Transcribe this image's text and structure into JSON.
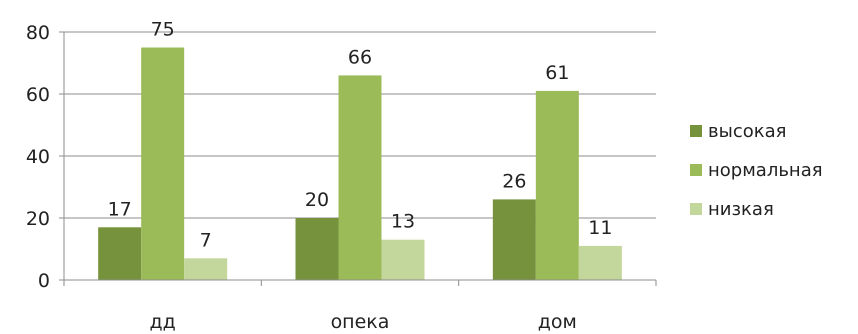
{
  "chart_data": {
    "type": "bar",
    "title": "",
    "xlabel": "",
    "ylabel": "",
    "categories": [
      "дд",
      "опека",
      "дом"
    ],
    "ylim": [
      0,
      80
    ],
    "yticks": [
      0,
      20,
      40,
      60,
      80
    ],
    "grid": true,
    "legend_position": "right",
    "series": [
      {
        "name": "высокая",
        "values": [
          17,
          20,
          26
        ],
        "color": "#76923c"
      },
      {
        "name": "нормальная",
        "values": [
          75,
          66,
          61
        ],
        "color": "#9bbb59"
      },
      {
        "name": "низкая",
        "values": [
          7,
          13,
          11
        ],
        "color": "#c3d69b"
      }
    ]
  }
}
